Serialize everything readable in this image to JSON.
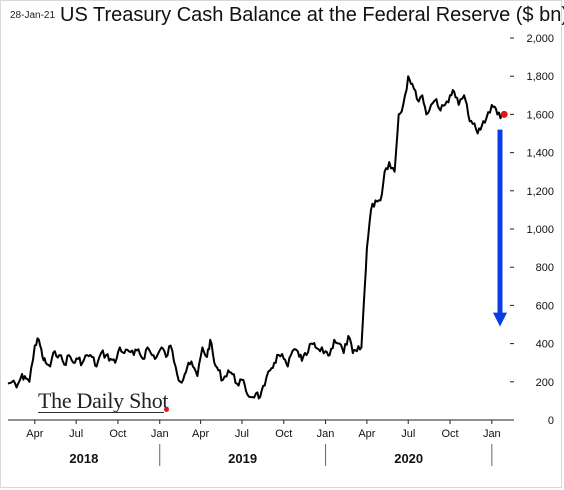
{
  "header": {
    "date_stamp": "28-Jan-21",
    "title": "US Treasury Cash Balance at the Federal Reserve ($ bn)"
  },
  "watermark": {
    "brand": "The Daily Shot"
  },
  "colors": {
    "line": "#000000",
    "last_point": "#e0161c",
    "arrow": "#0a3de6",
    "gridline": "#d9d9d9"
  },
  "chart_data": {
    "type": "line",
    "title": "US Treasury Cash Balance at the Federal Reserve ($ bn)",
    "xlabel": "",
    "ylabel": "",
    "ylim": [
      0,
      2000
    ],
    "yticks": [
      0,
      200,
      400,
      600,
      800,
      1000,
      1200,
      1400,
      1600,
      1800,
      2000
    ],
    "ytick_labels": [
      "0",
      "200",
      "400",
      "600",
      "800",
      "1,000",
      "1,200",
      "1,400",
      "1,600",
      "1,800",
      "2,000"
    ],
    "y_axis_side": "right",
    "grid": false,
    "xlim": [
      "2018-02-01",
      "2021-02-10"
    ],
    "month_ticks": [
      {
        "date": "2018-04-01",
        "label": "Apr"
      },
      {
        "date": "2018-07-01",
        "label": "Jul"
      },
      {
        "date": "2018-10-01",
        "label": "Oct"
      },
      {
        "date": "2019-01-01",
        "label": "Jan"
      },
      {
        "date": "2019-04-01",
        "label": "Apr"
      },
      {
        "date": "2019-07-01",
        "label": "Jul"
      },
      {
        "date": "2019-10-01",
        "label": "Oct"
      },
      {
        "date": "2020-01-01",
        "label": "Jan"
      },
      {
        "date": "2020-04-01",
        "label": "Apr"
      },
      {
        "date": "2020-07-01",
        "label": "Jul"
      },
      {
        "date": "2020-10-01",
        "label": "Oct"
      },
      {
        "date": "2021-01-01",
        "label": "Jan"
      }
    ],
    "years": [
      {
        "label": "2018",
        "start": "2018-02-01",
        "end": "2019-01-01"
      },
      {
        "label": "2019",
        "start": "2019-01-01",
        "end": "2020-01-01"
      },
      {
        "label": "2020",
        "start": "2020-01-01",
        "end": "2021-01-01"
      }
    ],
    "series": [
      {
        "x": [
          "2018-02-01",
          "2018-02-10",
          "2018-02-20",
          "2018-03-01",
          "2018-03-10",
          "2018-03-20",
          "2018-04-01",
          "2018-04-10",
          "2018-04-18",
          "2018-04-25",
          "2018-05-05",
          "2018-05-15",
          "2018-05-25",
          "2018-06-05",
          "2018-06-15",
          "2018-06-25",
          "2018-07-05",
          "2018-07-15",
          "2018-07-25",
          "2018-08-05",
          "2018-08-15",
          "2018-08-25",
          "2018-09-05",
          "2018-09-15",
          "2018-09-25",
          "2018-10-05",
          "2018-10-15",
          "2018-10-25",
          "2018-11-05",
          "2018-11-15",
          "2018-11-25",
          "2018-12-05",
          "2018-12-15",
          "2018-12-25",
          "2019-01-05",
          "2019-01-15",
          "2019-01-25",
          "2019-02-05",
          "2019-02-15",
          "2019-02-25",
          "2019-03-05",
          "2019-03-15",
          "2019-03-25",
          "2019-04-05",
          "2019-04-15",
          "2019-04-22",
          "2019-05-01",
          "2019-05-10",
          "2019-05-20",
          "2019-06-01",
          "2019-06-10",
          "2019-06-20",
          "2019-07-01",
          "2019-07-10",
          "2019-07-20",
          "2019-08-01",
          "2019-08-10",
          "2019-08-20",
          "2019-09-01",
          "2019-09-10",
          "2019-09-20",
          "2019-10-01",
          "2019-10-10",
          "2019-10-20",
          "2019-11-01",
          "2019-11-10",
          "2019-11-20",
          "2019-12-01",
          "2019-12-10",
          "2019-12-20",
          "2020-01-01",
          "2020-01-10",
          "2020-01-20",
          "2020-02-01",
          "2020-02-10",
          "2020-02-20",
          "2020-03-01",
          "2020-03-10",
          "2020-03-20",
          "2020-03-25",
          "2020-04-01",
          "2020-04-10",
          "2020-04-20",
          "2020-05-01",
          "2020-05-10",
          "2020-05-20",
          "2020-06-01",
          "2020-06-10",
          "2020-06-20",
          "2020-07-01",
          "2020-07-10",
          "2020-07-20",
          "2020-08-01",
          "2020-08-10",
          "2020-08-20",
          "2020-09-01",
          "2020-09-10",
          "2020-09-20",
          "2020-10-01",
          "2020-10-10",
          "2020-10-20",
          "2020-11-01",
          "2020-11-10",
          "2020-11-20",
          "2020-12-01",
          "2020-12-10",
          "2020-12-20",
          "2021-01-01",
          "2021-01-10",
          "2021-01-20",
          "2021-01-26"
        ],
        "values": [
          190,
          200,
          170,
          220,
          230,
          200,
          390,
          420,
          330,
          300,
          280,
          360,
          340,
          290,
          340,
          300,
          320,
          300,
          340,
          330,
          280,
          350,
          340,
          320,
          300,
          380,
          350,
          360,
          340,
          370,
          320,
          380,
          340,
          330,
          380,
          330,
          390,
          280,
          200,
          240,
          300,
          280,
          230,
          380,
          330,
          420,
          300,
          260,
          210,
          260,
          240,
          190,
          210,
          150,
          120,
          140,
          120,
          180,
          260,
          300,
          340,
          320,
          280,
          360,
          360,
          310,
          340,
          400,
          380,
          360,
          360,
          340,
          420,
          400,
          350,
          440,
          350,
          360,
          380,
          600,
          900,
          1100,
          1150,
          1150,
          1300,
          1350,
          1300,
          1600,
          1650,
          1800,
          1760,
          1680,
          1700,
          1600,
          1650,
          1680,
          1620,
          1650,
          1700,
          1720,
          1650,
          1700,
          1600,
          1550,
          1500,
          1540,
          1580,
          1650,
          1630,
          1580,
          1600
        ]
      }
    ],
    "last_value": 1600,
    "annotation_arrow": {
      "from": 1520,
      "to": 520
    }
  }
}
